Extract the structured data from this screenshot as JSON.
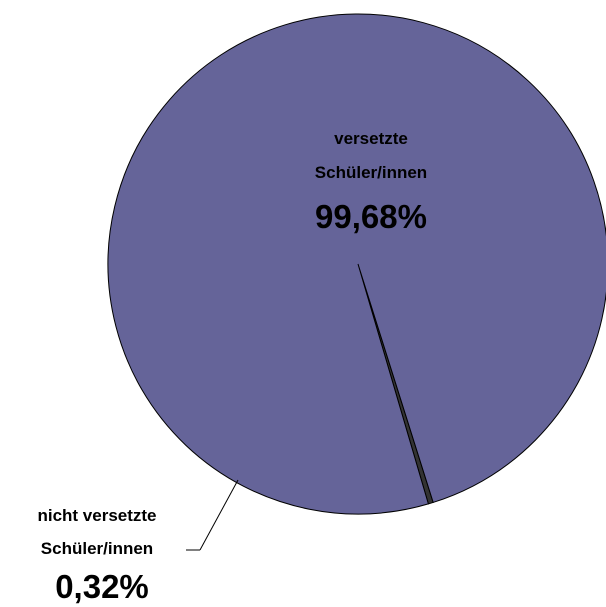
{
  "chart_data": {
    "type": "pie",
    "title": "",
    "slices": [
      {
        "label_line1": "versetzte",
        "label_line2": "Schüler/innen",
        "value": 99.68,
        "value_label": "99,68%",
        "color": "#656499"
      },
      {
        "label_line1": "nicht versetzte",
        "label_line2": "Schüler/innen",
        "value": 0.32,
        "value_label": "0,32%",
        "color": "#333333"
      }
    ],
    "legend": "none"
  }
}
